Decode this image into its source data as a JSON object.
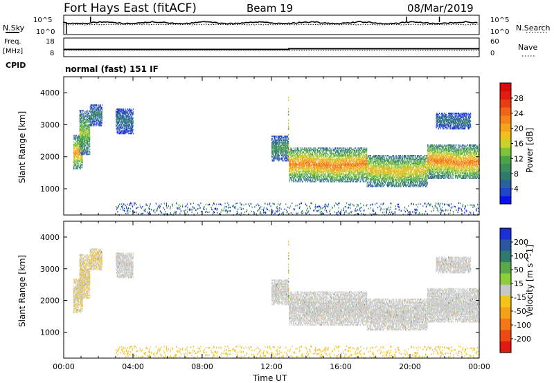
{
  "header": {
    "station": "Fort Hays East (fitACF)",
    "beam": "Beam 19",
    "date": "08/Mar/2019"
  },
  "noise_panel": {
    "left_label": "N.Sky",
    "right_label": "N.Search",
    "left_ticks": [
      "10^5",
      "10^0"
    ],
    "right_ticks": [
      "10^5",
      "10^0"
    ]
  },
  "freq_panel": {
    "left_label_top": "Freq.",
    "left_label_unit": "[MHz]",
    "left_ticks": [
      "18",
      "8"
    ],
    "right_label": "Nave",
    "right_ticks": [
      "60",
      "0"
    ]
  },
  "cpid": {
    "label": "CPID",
    "value": "normal (fast) 151 IF"
  },
  "chart_data": [
    {
      "type": "heatmap",
      "name": "power",
      "ylabel": "Slant Range [km]",
      "xlabel": "",
      "xlim": [
        0,
        24
      ],
      "ylim": [
        180,
        4500
      ],
      "y_ticks": [
        "1000",
        "2000",
        "3000",
        "4000"
      ],
      "colorbar": {
        "label": "Power [dB]",
        "ticks": [
          "4",
          "8",
          "12",
          "16",
          "20",
          "24",
          "28"
        ],
        "range": [
          0,
          32
        ],
        "colors": [
          "#0a14e6",
          "#1e46c8",
          "#2a5fa0",
          "#2f7a6e",
          "#3a8e5a",
          "#4aa645",
          "#7dc43a",
          "#c8d22a",
          "#f0c020",
          "#f5a21c",
          "#f5821a",
          "#f06418",
          "#e83c14",
          "#e01e10",
          "#d80a0a"
        ]
      },
      "echo_regions": [
        {
          "t": [
            0.55,
            1.1
          ],
          "range": [
            1650,
            2700
          ],
          "core": 20
        },
        {
          "t": [
            0.9,
            1.5
          ],
          "range": [
            2100,
            3500
          ],
          "core": 14
        },
        {
          "t": [
            1.5,
            2.2
          ],
          "range": [
            3000,
            3650
          ],
          "core": 8
        },
        {
          "t": [
            3.0,
            4.0
          ],
          "range": [
            2750,
            3550
          ],
          "core": 7
        },
        {
          "t": [
            12.0,
            13.0
          ],
          "range": [
            1900,
            2700
          ],
          "core": 10
        },
        {
          "t": [
            13.0,
            17.5
          ],
          "range": [
            1250,
            2300
          ],
          "core": 22
        },
        {
          "t": [
            17.5,
            21.0
          ],
          "range": [
            1100,
            2100
          ],
          "core": 18
        },
        {
          "t": [
            21.0,
            24.0
          ],
          "range": [
            1350,
            2400
          ],
          "core": 22
        },
        {
          "t": [
            21.5,
            23.5
          ],
          "range": [
            2900,
            3400
          ],
          "core": 7
        }
      ]
    },
    {
      "type": "heatmap",
      "name": "velocity",
      "ylabel": "Slant Range [km]",
      "xlabel": "Time UT",
      "xlim": [
        0,
        24
      ],
      "ylim": [
        180,
        4500
      ],
      "x_ticks": [
        "00:00",
        "04:00",
        "08:00",
        "12:00",
        "16:00",
        "20:00",
        "00:00"
      ],
      "y_ticks": [
        "1000",
        "2000",
        "3000",
        "4000"
      ],
      "colorbar": {
        "label": "Velocity [m s^-1]",
        "ticks": [
          "200",
          "100",
          "50",
          "15",
          "-15",
          "-50",
          "-100",
          "-200"
        ],
        "range": [
          -250,
          250
        ],
        "colors": [
          "#1c2fd2",
          "#2a58a0",
          "#2f7a6e",
          "#5aa848",
          "#8ccf3c",
          "#c8c8c8",
          "#f5c21c",
          "#f5a01a",
          "#f27818",
          "#ec4a14",
          "#e01a10"
        ]
      },
      "scatter_color": "#c8c8c8",
      "ground_color": "#f5a01a"
    }
  ]
}
